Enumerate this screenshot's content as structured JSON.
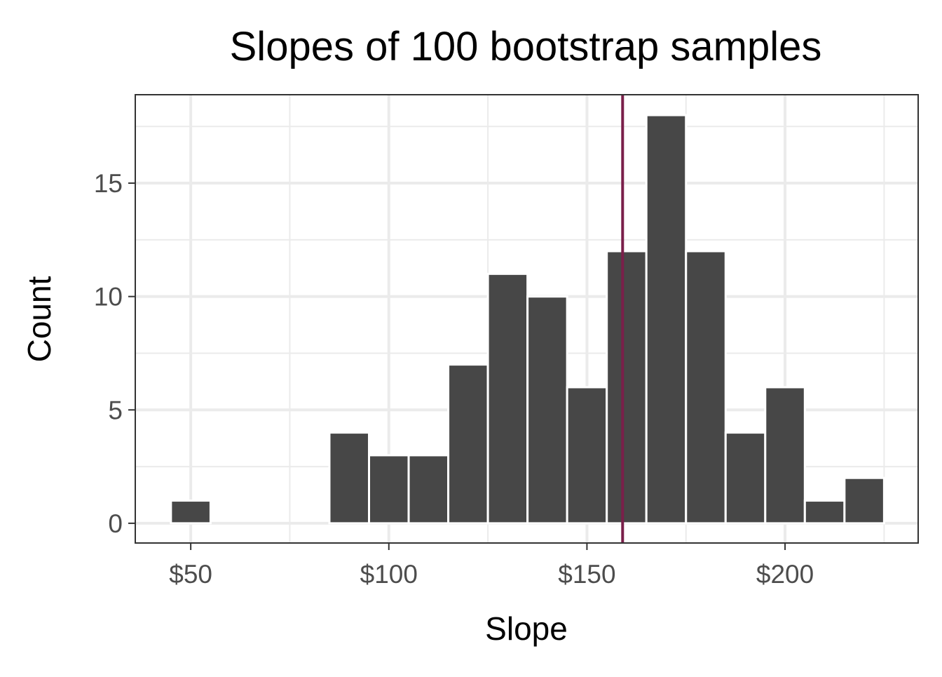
{
  "chart_data": {
    "type": "bar",
    "title": "Slopes of 100 bootstrap samples",
    "xlabel": "Slope",
    "ylabel": "Count",
    "binwidth": 10,
    "bins": [
      50,
      60,
      70,
      80,
      90,
      100,
      110,
      120,
      130,
      140,
      150,
      160,
      170,
      180,
      190,
      200,
      210,
      220
    ],
    "values": [
      1,
      0,
      0,
      0,
      4,
      3,
      3,
      7,
      11,
      10,
      6,
      12,
      18,
      12,
      4,
      6,
      1,
      2
    ],
    "xlim": [
      36,
      233.6
    ],
    "ylim": [
      -0.87,
      18.9
    ],
    "x_ticks": [
      50,
      100,
      150,
      200
    ],
    "x_tick_labels": [
      "$50",
      "$100",
      "$150",
      "$200"
    ],
    "y_ticks": [
      0,
      5,
      10,
      15
    ],
    "y_tick_labels": [
      "0",
      "5",
      "10",
      "15"
    ],
    "reference_line": {
      "x": 159,
      "color": "#7a1f4a"
    },
    "bar_color": "#474747",
    "grid": true
  }
}
